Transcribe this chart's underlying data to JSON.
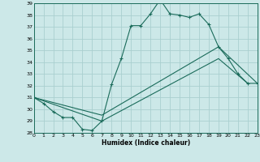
{
  "xlabel": "Humidex (Indice chaleur)",
  "bg_color": "#cce8e8",
  "grid_color": "#aacfcf",
  "line_color": "#1a6b5a",
  "xmin": 0,
  "xmax": 23,
  "ymin": 28,
  "ymax": 39,
  "line1_x": [
    0,
    1,
    2,
    3,
    4,
    5,
    6,
    7,
    8,
    9,
    10,
    11,
    12,
    13,
    14,
    15,
    16,
    17,
    18,
    19,
    20,
    21,
    22,
    23
  ],
  "line1_y": [
    31,
    30.5,
    29.8,
    29.3,
    29.3,
    28.3,
    28.2,
    29.0,
    32.1,
    34.3,
    37.1,
    37.1,
    38.1,
    39.3,
    38.1,
    38.0,
    37.8,
    38.1,
    37.2,
    35.3,
    34.3,
    33.0,
    32.2,
    32.2
  ],
  "line2_x": [
    0,
    7,
    19,
    22
  ],
  "line2_y": [
    31,
    29.0,
    34.3,
    32.2
  ],
  "line3_x": [
    0,
    7,
    19,
    23
  ],
  "line3_y": [
    31,
    29.5,
    35.3,
    32.2
  ]
}
